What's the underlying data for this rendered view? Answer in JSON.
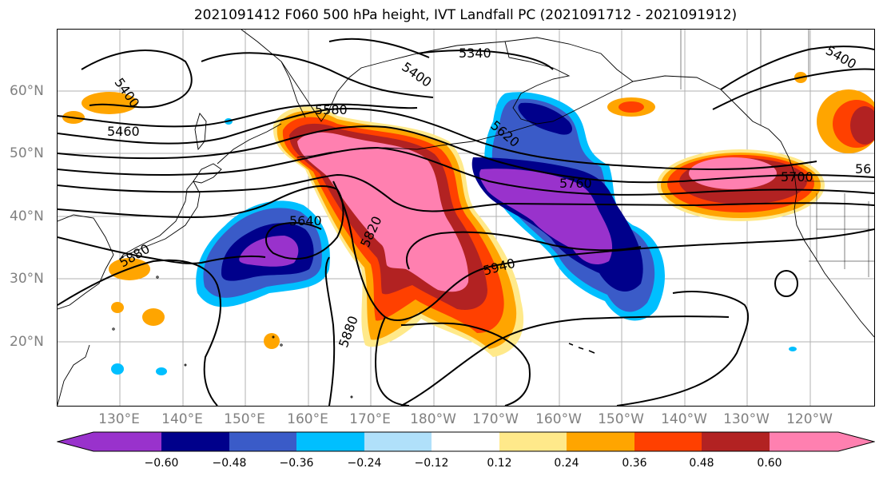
{
  "title": "2021091412 F060 500 hPa height, IVT Landfall PC (2021091712 - 2021091912)",
  "map": {
    "lat_labels": [
      "60°N",
      "50°N",
      "40°N",
      "30°N",
      "20°N"
    ],
    "lon_labels": [
      "130°E",
      "140°E",
      "150°E",
      "160°E",
      "170°E",
      "180°W",
      "170°W",
      "160°W",
      "150°W",
      "140°W",
      "130°W",
      "120°W"
    ],
    "contour_labels": [
      "5400",
      "5460",
      "5400",
      "5340",
      "5580",
      "5620",
      "5640",
      "5820",
      "5880",
      "5940",
      "5760",
      "5700",
      "5880",
      "5400",
      "56"
    ]
  },
  "colorbar": {
    "ticks": [
      "−0.60",
      "−0.48",
      "−0.36",
      "−0.24",
      "−0.12",
      "0.12",
      "0.24",
      "0.36",
      "0.48",
      "0.60"
    ],
    "colors": [
      "#9932cc",
      "#00008b",
      "#3a5bc8",
      "#00bfff",
      "#b0e0fa",
      "#ffffff",
      "#ffe98a",
      "#ffa500",
      "#ff4000",
      "#b22222",
      "#ff80b0"
    ]
  }
}
